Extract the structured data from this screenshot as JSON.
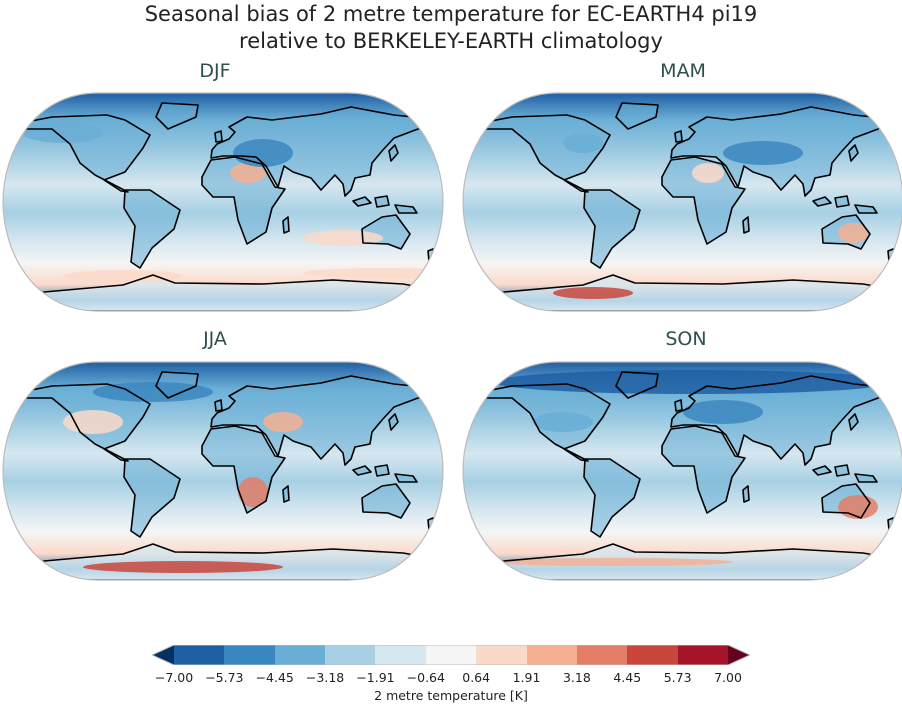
{
  "figure": {
    "title_line1": "Seasonal bias of 2 metre temperature for EC-EARTH4 pi19",
    "title_line2": "relative to BERKELEY-EARTH climatology"
  },
  "panels": [
    {
      "title": "DJF"
    },
    {
      "title": "MAM"
    },
    {
      "title": "JJA"
    },
    {
      "title": "SON"
    }
  ],
  "colorbar": {
    "label": "2 metre temperature [K]",
    "ticks": [
      "−7.00",
      "−5.73",
      "−4.45",
      "−3.18",
      "−1.91",
      "−0.64",
      "0.64",
      "1.91",
      "3.18",
      "4.45",
      "5.73",
      "7.00"
    ],
    "levels": [
      -7.0,
      -5.73,
      -4.45,
      -3.18,
      -1.91,
      -0.64,
      0.64,
      1.91,
      3.18,
      4.45,
      5.73,
      7.0
    ],
    "extend": "both",
    "colors": [
      "#1f5fa3",
      "#3b87c0",
      "#6aaed6",
      "#a7d0e4",
      "#d6e7f0",
      "#f5f5f5",
      "#fbd9c9",
      "#f5b092",
      "#e47e67",
      "#c9463d",
      "#a51429"
    ],
    "under_color": "#053061",
    "over_color": "#67001f"
  }
}
